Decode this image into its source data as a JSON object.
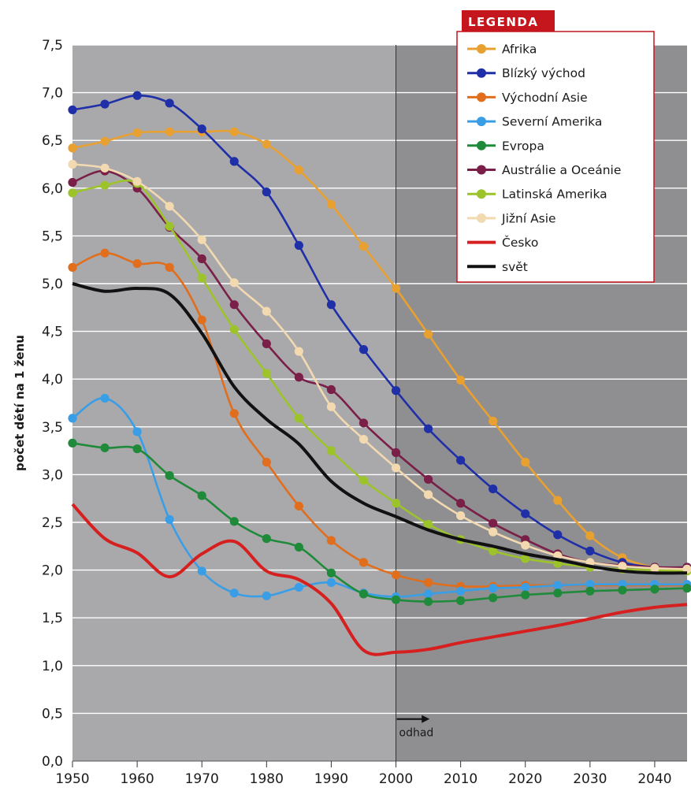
{
  "chart_data": {
    "type": "line",
    "title": "",
    "xlabel": "",
    "ylabel": "počet dětí na 1 ženu",
    "xlim": [
      1950,
      2045
    ],
    "ylim": [
      0,
      7.5
    ],
    "x_ticks": [
      "1950",
      "1960",
      "1970",
      "1980",
      "1990",
      "2000",
      "2010",
      "2020",
      "2030",
      "2040"
    ],
    "y_ticks": [
      "0,0",
      "0,5",
      "1,0",
      "1,5",
      "2,0",
      "2,5",
      "3,0",
      "3,5",
      "4,0",
      "4,5",
      "5,0",
      "5,5",
      "6,0",
      "6,5",
      "7,0",
      "7,5"
    ],
    "grid": "horizontal",
    "estimate_from": 2000,
    "annotation": "odhad",
    "legend": {
      "title": "LEGENDA",
      "position": "top-right"
    },
    "x": [
      1950,
      1955,
      1960,
      1965,
      1970,
      1975,
      1980,
      1985,
      1990,
      1995,
      2000,
      2005,
      2010,
      2015,
      2020,
      2025,
      2030,
      2035,
      2040,
      2045
    ],
    "series": [
      {
        "name": "Afrika",
        "color": "#e8a030",
        "markers": true,
        "values": [
          6.42,
          6.49,
          6.58,
          6.59,
          6.59,
          6.59,
          6.46,
          6.19,
          5.83,
          5.39,
          4.95,
          4.47,
          3.99,
          3.56,
          3.13,
          2.73,
          2.36,
          2.13,
          2.03,
          2.02
        ]
      },
      {
        "name": "Blízký východ",
        "color": "#1f2fa8",
        "markers": true,
        "values": [
          6.82,
          6.88,
          6.97,
          6.89,
          6.62,
          6.28,
          5.96,
          5.4,
          4.78,
          4.31,
          3.88,
          3.48,
          3.15,
          2.85,
          2.59,
          2.37,
          2.2,
          2.08,
          2.03,
          2.03
        ]
      },
      {
        "name": "Východní Asie",
        "color": "#e06e1c",
        "markers": true,
        "values": [
          5.17,
          5.32,
          5.21,
          5.17,
          4.62,
          3.64,
          3.13,
          2.67,
          2.31,
          2.08,
          1.95,
          1.87,
          1.83,
          1.83,
          1.84,
          1.84,
          1.84,
          1.84,
          1.84,
          1.84
        ]
      },
      {
        "name": "Severní Amerika",
        "color": "#3a9ee6",
        "markers": true,
        "values": [
          3.59,
          3.8,
          3.45,
          2.53,
          1.99,
          1.76,
          1.73,
          1.82,
          1.87,
          1.76,
          1.72,
          1.75,
          1.78,
          1.81,
          1.82,
          1.84,
          1.85,
          1.85,
          1.85,
          1.85
        ]
      },
      {
        "name": "Evropa",
        "color": "#1f8a3a",
        "markers": true,
        "values": [
          3.33,
          3.28,
          3.27,
          2.99,
          2.78,
          2.51,
          2.33,
          2.24,
          1.97,
          1.75,
          1.69,
          1.67,
          1.68,
          1.71,
          1.74,
          1.76,
          1.78,
          1.79,
          1.8,
          1.81
        ]
      },
      {
        "name": "Austrálie a Oceánie",
        "color": "#7a1f48",
        "markers": true,
        "values": [
          6.06,
          6.18,
          6.0,
          5.59,
          5.26,
          4.78,
          4.37,
          4.02,
          3.89,
          3.54,
          3.23,
          2.95,
          2.7,
          2.49,
          2.32,
          2.17,
          2.08,
          2.05,
          2.03,
          2.03
        ]
      },
      {
        "name": "Latinská Amerika",
        "color": "#9cc42a",
        "markers": true,
        "values": [
          5.95,
          6.03,
          6.05,
          5.6,
          5.06,
          4.52,
          4.06,
          3.59,
          3.25,
          2.94,
          2.7,
          2.48,
          2.32,
          2.2,
          2.12,
          2.07,
          2.03,
          2.01,
          2.0,
          1.99
        ]
      },
      {
        "name": "Jižní Asie",
        "color": "#f2d9b0",
        "markers": true,
        "values": [
          6.25,
          6.21,
          6.07,
          5.81,
          5.46,
          5.01,
          4.71,
          4.29,
          3.71,
          3.37,
          3.07,
          2.79,
          2.57,
          2.4,
          2.26,
          2.15,
          2.08,
          2.04,
          2.02,
          2.01
        ]
      },
      {
        "name": "Česko",
        "color": "#d62020",
        "markers": false,
        "values": [
          2.69,
          2.33,
          2.18,
          1.93,
          2.17,
          2.3,
          1.99,
          1.9,
          1.65,
          1.16,
          1.14,
          1.17,
          1.24,
          1.3,
          1.36,
          1.42,
          1.49,
          1.56,
          1.61,
          1.64
        ]
      },
      {
        "name": "svět",
        "color": "#111111",
        "markers": false,
        "values": [
          5.0,
          4.92,
          4.95,
          4.89,
          4.48,
          3.92,
          3.58,
          3.32,
          2.93,
          2.7,
          2.56,
          2.42,
          2.32,
          2.25,
          2.17,
          2.11,
          2.04,
          1.99,
          1.97,
          1.97
        ]
      }
    ]
  }
}
